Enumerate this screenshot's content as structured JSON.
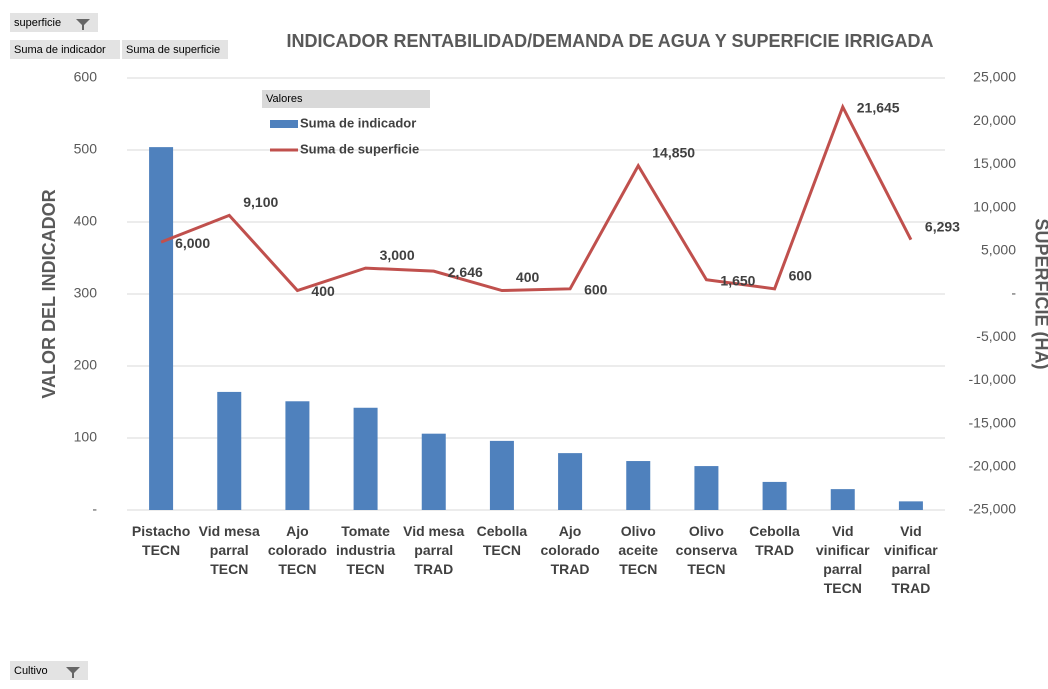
{
  "pivot": {
    "filter": "superficie",
    "values": [
      "Suma de indicador",
      "Suma de superficie"
    ],
    "axis": "Cultivo"
  },
  "chart_data": {
    "type": "bar_line",
    "title": "INDICADOR RENTABILIDAD/DEMANDA DE AGUA Y SUPERFICIE IRRIGADA",
    "y_label": "VALOR DEL INDICADOR",
    "y2_label": "SUPERFICIE (HA)",
    "legend_title": "Valores",
    "categories": [
      "Pistacho TECN",
      "Vid mesa parral TECN",
      "Ajo colorado TECN",
      "Tomate industria TECN",
      "Vid mesa parral TRAD",
      "Cebolla TECN",
      "Ajo colorado TRAD",
      "Olivo aceite TECN",
      "Olivo conserva TECN",
      "Cebolla TRAD",
      "Vid vinificar parral TECN",
      "Vid vinificar parral TRAD"
    ],
    "series": [
      {
        "name": "Suma de indicador",
        "type": "bar",
        "color": "#4f81bd",
        "values": [
          504,
          164,
          151,
          142,
          106,
          96,
          79,
          68,
          61,
          39,
          29,
          12
        ]
      },
      {
        "name": "Suma de superficie",
        "type": "line",
        "axis": "y2",
        "color": "#c0504d",
        "values": [
          6000,
          9100,
          400,
          3000,
          2646,
          400,
          600,
          14850,
          1650,
          600,
          21645,
          6293
        ],
        "value_labels": [
          "6,000",
          "9,100",
          "400",
          "3,000",
          "2,646",
          "400",
          "600",
          "14,850",
          "1,650",
          "600",
          "21,645",
          "6,293"
        ]
      }
    ],
    "ylim": [
      0,
      600
    ],
    "yticks": [
      {
        "value": 0,
        "label": "-"
      },
      100,
      200,
      300,
      400,
      500,
      600
    ],
    "y2lim": [
      -25000,
      25000
    ],
    "y2ticks": [
      {
        "value": -25000,
        "label": "-25,000"
      },
      {
        "value": -20000,
        "label": "-20,000"
      },
      {
        "value": -15000,
        "label": "-15,000"
      },
      {
        "value": -10000,
        "label": "-10,000"
      },
      {
        "value": -5000,
        "label": "-5,000"
      },
      {
        "value": 0,
        "label": "-"
      },
      {
        "value": 5000,
        "label": "5,000"
      },
      {
        "value": 10000,
        "label": "10,000"
      },
      {
        "value": 15000,
        "label": "15,000"
      },
      {
        "value": 20000,
        "label": "20,000"
      },
      {
        "value": 25000,
        "label": "25,000"
      }
    ],
    "grid": true
  }
}
